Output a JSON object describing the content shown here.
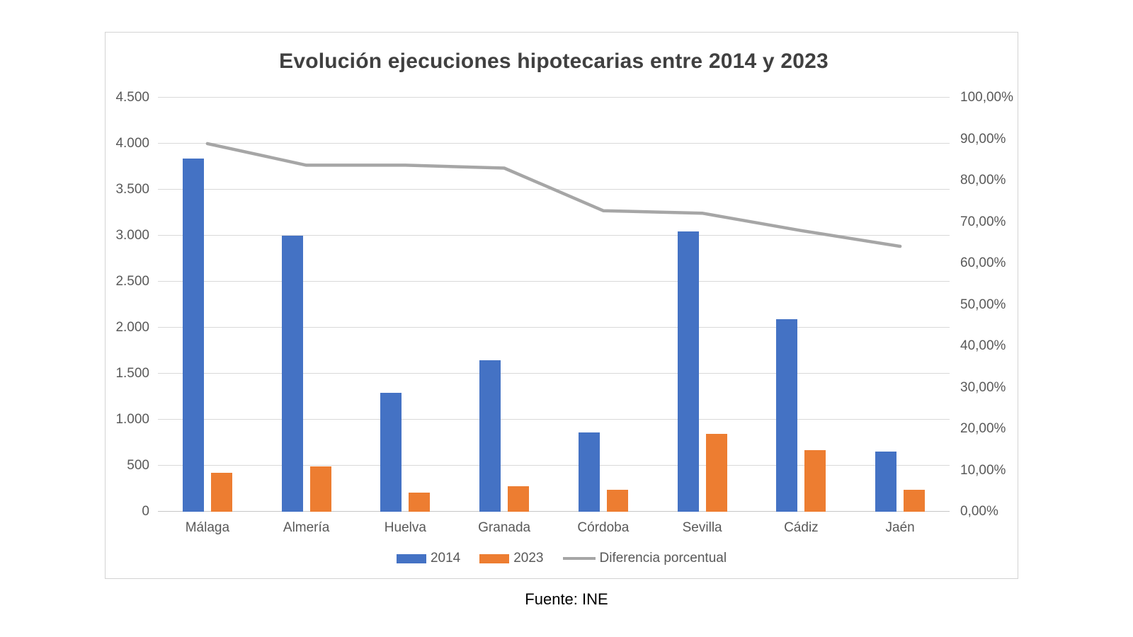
{
  "source_note": "Fuente: INE",
  "chart": {
    "colors": {
      "series_2014": "#4472C4",
      "series_2023": "#ED7D31",
      "line": "#A6A6A6",
      "gridline": "#D9D9D9",
      "axis_line": "#C6C6C6",
      "tick_text": "#595959",
      "title_text": "#404040",
      "frame_border": "#D3D3D3",
      "source_text": "#000000"
    }
  },
  "chart_data": {
    "type": "bar",
    "subtype": "grouped-bars-with-secondary-axis-line",
    "title": "Evolución ejecuciones hipotecarias entre 2014 y 2023",
    "categories": [
      "Málaga",
      "Almería",
      "Huelva",
      "Granada",
      "Córdoba",
      "Sevilla",
      "Cádiz",
      "Jaén"
    ],
    "series": [
      {
        "name": "2014",
        "type": "bar",
        "axis": "left",
        "values": [
          3840,
          3000,
          1290,
          1650,
          860,
          3050,
          2090,
          655
        ]
      },
      {
        "name": "2023",
        "type": "bar",
        "axis": "left",
        "values": [
          425,
          490,
          210,
          280,
          235,
          850,
          670,
          235
        ]
      },
      {
        "name": "Diferencia porcentual",
        "type": "line",
        "axis": "right",
        "values": [
          88.9,
          83.7,
          83.7,
          83.0,
          72.7,
          72.1,
          67.9,
          64.1
        ]
      }
    ],
    "left_axis": {
      "min": 0,
      "max": 4500,
      "step": 500,
      "tick_labels": [
        "0",
        "500",
        "1.000",
        "1.500",
        "2.000",
        "2.500",
        "3.000",
        "3.500",
        "4.000",
        "4.500"
      ]
    },
    "right_axis": {
      "min": 0,
      "max": 100,
      "step": 10,
      "tick_labels": [
        "0,00%",
        "10,00%",
        "20,00%",
        "30,00%",
        "40,00%",
        "50,00%",
        "60,00%",
        "70,00%",
        "80,00%",
        "90,00%",
        "100,00%"
      ]
    },
    "legend": {
      "position": "bottom",
      "entries": [
        "2014",
        "2023",
        "Diferencia porcentual"
      ]
    },
    "grid": true
  }
}
